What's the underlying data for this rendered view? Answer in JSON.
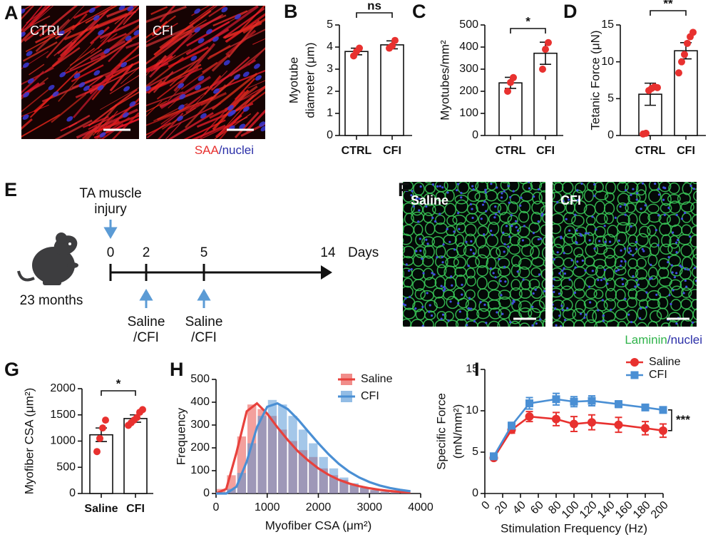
{
  "panels": {
    "A": {
      "label": "A",
      "images": [
        "CTRL",
        "CFI"
      ],
      "stain": [
        "SAA",
        "/nuclei"
      ]
    },
    "E": {
      "label": "E",
      "injury": [
        "TA muscle",
        "injury"
      ],
      "days": [
        0,
        2,
        5,
        14
      ],
      "unit": "Days",
      "age": "23 months",
      "treatment": [
        "Saline",
        "/CFI"
      ]
    },
    "F": {
      "label": "F",
      "images": [
        "Saline",
        "CFI"
      ],
      "stain": [
        "Laminin",
        "/nuclei"
      ]
    }
  },
  "chart_data": [
    {
      "type": "bar",
      "label": "B",
      "ylabel": [
        "Myotube",
        "diameter (μm)"
      ],
      "categories": [
        "CTRL",
        "CFI"
      ],
      "values": [
        3.8,
        4.1
      ],
      "errors": [
        0.15,
        0.18
      ],
      "points": [
        [
          3.6,
          3.8,
          3.95
        ],
        [
          3.95,
          4.05,
          4.3
        ]
      ],
      "ylim": [
        0,
        5
      ],
      "yticks": [
        0,
        1,
        2,
        3,
        4,
        5
      ],
      "significance": "ns",
      "color": "#e8312f"
    },
    {
      "type": "bar",
      "label": "C",
      "ylabel": [
        "Myotubes/mm²"
      ],
      "categories": [
        "CTRL",
        "CFI"
      ],
      "values": [
        238,
        372
      ],
      "errors": [
        25,
        50
      ],
      "points": [
        [
          200,
          240,
          262
        ],
        [
          300,
          390,
          420
        ]
      ],
      "ylim": [
        0,
        500
      ],
      "yticks": [
        0,
        100,
        200,
        300,
        400,
        500
      ],
      "significance": "*",
      "color": "#e8312f"
    },
    {
      "type": "bar",
      "label": "D",
      "ylabel": [
        "Tetanic Force (μN)"
      ],
      "categories": [
        "CTRL",
        "CFI"
      ],
      "values": [
        5.6,
        11.5
      ],
      "errors": [
        1.5,
        1.1
      ],
      "points": [
        [
          0.2,
          0.3,
          6.1,
          6.4,
          6.6,
          6.5
        ],
        [
          8.5,
          10,
          11,
          12.5,
          13.4,
          14
        ]
      ],
      "ylim": [
        0,
        15
      ],
      "yticks": [
        0,
        5,
        10,
        15
      ],
      "significance": "**",
      "color": "#e8312f"
    },
    {
      "type": "bar",
      "label": "G",
      "ylabel": [
        "Myofiber CSA (μm²)"
      ],
      "categories": [
        "Saline",
        "CFI"
      ],
      "values": [
        1120,
        1430
      ],
      "errors": [
        130,
        70
      ],
      "points": [
        [
          800,
          1050,
          1250,
          1400
        ],
        [
          1300,
          1350,
          1400,
          1450,
          1550,
          1600
        ]
      ],
      "ylim": [
        0,
        2000
      ],
      "yticks": [
        0,
        500,
        1000,
        1500,
        2000
      ],
      "significance": "*",
      "color": "#e8312f"
    },
    {
      "type": "histogram",
      "label": "H",
      "xlabel": "Myofiber CSA (μm²)",
      "ylabel": "Frequency",
      "bins": [
        0,
        200,
        400,
        600,
        800,
        1000,
        1200,
        1400,
        1600,
        1800,
        2000,
        2200,
        2400,
        2600,
        2800,
        3000,
        3200,
        3400,
        3600,
        3800
      ],
      "series": [
        {
          "name": "Saline",
          "color": "#e8413c",
          "values": [
            20,
            80,
            250,
            390,
            370,
            340,
            280,
            230,
            190,
            160,
            110,
            80,
            60,
            40,
            25,
            15,
            8,
            5,
            3
          ],
          "fit": {
            "x": [
              0,
              200,
              400,
              600,
              800,
              1000,
              1200,
              1400,
              1600,
              1800,
              2000,
              2200,
              2400,
              2600,
              2800,
              3000,
              3200,
              3400,
              3600,
              3800
            ],
            "values": [
              0,
              20,
              180,
              360,
              395,
              350,
              290,
              235,
              185,
              145,
              110,
              82,
              60,
              44,
              32,
              23,
              16,
              11,
              7,
              5
            ]
          }
        },
        {
          "name": "CFI",
          "color": "#4a8fd4",
          "values": [
            5,
            20,
            90,
            220,
            340,
            410,
            390,
            340,
            280,
            220,
            160,
            110,
            70,
            45,
            25,
            15,
            8,
            4,
            2
          ],
          "fit": {
            "x": [
              0,
              200,
              400,
              600,
              800,
              1000,
              1200,
              1400,
              1600,
              1800,
              2000,
              2200,
              2400,
              2600,
              2800,
              3000,
              3200,
              3400,
              3600,
              3800
            ],
            "values": [
              0,
              0,
              30,
              140,
              290,
              380,
              395,
              370,
              325,
              272,
              220,
              172,
              130,
              96,
              70,
              50,
              35,
              24,
              16,
              10
            ]
          }
        }
      ],
      "xlim": [
        0,
        4000
      ],
      "xticks": [
        0,
        1000,
        2000,
        3000,
        4000
      ],
      "ylim": [
        0,
        500
      ],
      "yticks": [
        0,
        100,
        200,
        300,
        400,
        500
      ],
      "legend": "upper right"
    },
    {
      "type": "line",
      "label": "I",
      "xlabel": "Stimulation Frequency (Hz)",
      "ylabel": [
        "Specific Force",
        "(mN/mm²)"
      ],
      "x": [
        10,
        30,
        50,
        80,
        100,
        120,
        150,
        180,
        200
      ],
      "series": [
        {
          "name": "Saline",
          "color": "#e8312f",
          "marker": "circle",
          "values": [
            4.3,
            7.7,
            9.3,
            9.0,
            8.4,
            8.6,
            8.3,
            7.9,
            7.6
          ],
          "errors": [
            0.2,
            0.4,
            0.6,
            0.8,
            0.9,
            0.9,
            0.9,
            0.8,
            0.8
          ]
        },
        {
          "name": "CFI",
          "color": "#4a8fd4",
          "marker": "square",
          "values": [
            4.5,
            8.2,
            10.9,
            11.4,
            11.1,
            11.2,
            10.8,
            10.4,
            10.1
          ],
          "errors": [
            0.2,
            0.4,
            0.7,
            0.7,
            0.6,
            0.6,
            0.4,
            0.3,
            0.3
          ]
        }
      ],
      "xlim": [
        0,
        200
      ],
      "xticks": [
        0,
        20,
        40,
        60,
        80,
        100,
        120,
        140,
        160,
        180,
        200
      ],
      "ylim": [
        0,
        15
      ],
      "yticks": [
        0,
        5,
        10,
        15
      ],
      "significance": "***",
      "legend": "upper right"
    }
  ]
}
